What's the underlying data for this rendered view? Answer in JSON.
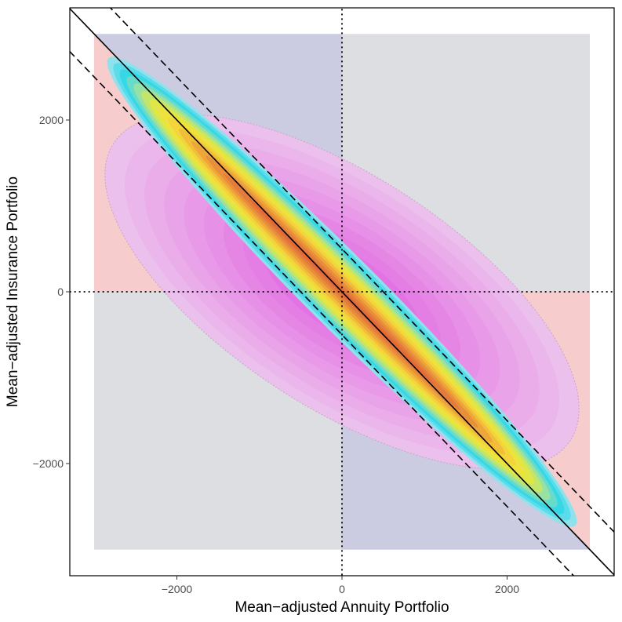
{
  "chart_data": {
    "type": "contour",
    "title": "",
    "xlabel": "Mean−adjusted Annuity Portfolio",
    "ylabel": "Mean−adjusted Insurance Portfolio",
    "xlim": [
      -3300,
      3300
    ],
    "ylim": [
      -3300,
      3300
    ],
    "x_ticks": [
      {
        "value": -2000,
        "label": "−2000"
      },
      {
        "value": 0,
        "label": "0"
      },
      {
        "value": 2000,
        "label": "2000"
      }
    ],
    "y_ticks": [
      {
        "value": 2000,
        "label": "2000"
      },
      {
        "value": 0,
        "label": "0"
      },
      {
        "value": -2000,
        "label": "−2000"
      }
    ],
    "grid": false,
    "background_regions": [
      {
        "name": "Q2 (x<0, y>0) lower-left part",
        "x": [
          -3000,
          0
        ],
        "y": [
          0,
          3000
        ],
        "color": "#f6cccc",
        "polygon": [
          [
            -3000,
            0
          ],
          [
            -3000,
            3000
          ],
          [
            0,
            0
          ]
        ]
      },
      {
        "name": "Q2 (x<0, y>0) upper-right part",
        "x": [
          -3000,
          0
        ],
        "y": [
          0,
          3000
        ],
        "color": "#cbcce1",
        "polygon": [
          [
            -3000,
            3000
          ],
          [
            0,
            3000
          ],
          [
            0,
            0
          ]
        ]
      },
      {
        "name": "Q1 (x>0, y>0)",
        "color": "#dcdee1",
        "polygon": [
          [
            0,
            0
          ],
          [
            0,
            3000
          ],
          [
            3000,
            3000
          ],
          [
            3000,
            0
          ]
        ]
      },
      {
        "name": "Q3 (x<0, y<0)",
        "color": "#dcdee1",
        "polygon": [
          [
            -3000,
            -3000
          ],
          [
            -3000,
            0
          ],
          [
            0,
            0
          ],
          [
            0,
            -3000
          ]
        ]
      },
      {
        "name": "Q4 (x>0, y<0) lower-left part",
        "color": "#cbcce1",
        "polygon": [
          [
            0,
            0
          ],
          [
            0,
            -3000
          ],
          [
            3000,
            -3000
          ]
        ]
      },
      {
        "name": "Q4 (x>0, y<0) upper-right part",
        "color": "#f6cccc",
        "polygon": [
          [
            0,
            0
          ],
          [
            3000,
            -3000
          ],
          [
            3000,
            0
          ]
        ]
      }
    ],
    "density_wide": {
      "description": "Wide magenta density contours (negatively correlated)",
      "center": [
        0,
        0
      ],
      "angle_deg": -33,
      "semi_axes": [
        3300,
        1350
      ],
      "levels": 12,
      "color_outer": "#ecc0ec",
      "color_inner": "#e056e0"
    },
    "density_narrow": {
      "description": "Narrow density band along y = -x",
      "center": [
        0,
        0
      ],
      "angle_deg": -45,
      "semi_axes": [
        4000,
        420
      ],
      "levels": 14,
      "colors": [
        "#8fe2ec",
        "#2fd6ea",
        "#8be0b6",
        "#d9e84a",
        "#f3e03a",
        "#f2b83a",
        "#e88a3a",
        "#e06a3a"
      ]
    },
    "reference_lines": [
      {
        "name": "y = -x",
        "slope": -1,
        "intercept": 0,
        "style": "solid"
      },
      {
        "name": "upper band",
        "slope": -1,
        "intercept": 500,
        "style": "dashed"
      },
      {
        "name": "lower band",
        "slope": -1,
        "intercept": -500,
        "style": "dashed"
      },
      {
        "name": "x = 0",
        "vertical": 0,
        "style": "dotted"
      },
      {
        "name": "y = 0",
        "horizontal": 0,
        "style": "dotted"
      }
    ]
  }
}
